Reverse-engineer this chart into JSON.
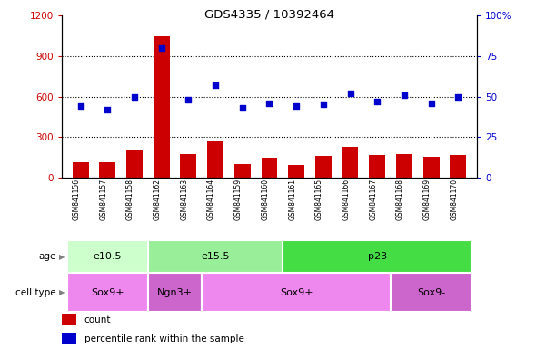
{
  "title": "GDS4335 / 10392464",
  "samples": [
    "GSM841156",
    "GSM841157",
    "GSM841158",
    "GSM841162",
    "GSM841163",
    "GSM841164",
    "GSM841159",
    "GSM841160",
    "GSM841161",
    "GSM841165",
    "GSM841166",
    "GSM841167",
    "GSM841168",
    "GSM841169",
    "GSM841170"
  ],
  "counts": [
    110,
    110,
    210,
    1050,
    175,
    270,
    100,
    145,
    95,
    160,
    230,
    165,
    175,
    155,
    165
  ],
  "percentiles": [
    44,
    42,
    50,
    80,
    48,
    57,
    43,
    46,
    44,
    45,
    52,
    47,
    51,
    46,
    50
  ],
  "age_groups": [
    {
      "label": "e10.5",
      "start": 0,
      "end": 3,
      "color": "#ccffcc"
    },
    {
      "label": "e15.5",
      "start": 3,
      "end": 8,
      "color": "#99ee99"
    },
    {
      "label": "p23",
      "start": 8,
      "end": 15,
      "color": "#44dd44"
    }
  ],
  "cell_groups": [
    {
      "label": "Sox9+",
      "start": 0,
      "end": 3,
      "color": "#ee88ee"
    },
    {
      "label": "Ngn3+",
      "start": 3,
      "end": 5,
      "color": "#cc66cc"
    },
    {
      "label": "Sox9+",
      "start": 5,
      "end": 12,
      "color": "#ee88ee"
    },
    {
      "label": "Sox9-",
      "start": 12,
      "end": 15,
      "color": "#cc66cc"
    }
  ],
  "bar_color": "#cc0000",
  "dot_color": "#0000cc",
  "left_ylim": [
    0,
    1200
  ],
  "right_ylim": [
    0,
    100
  ],
  "left_yticks": [
    0,
    300,
    600,
    900,
    1200
  ],
  "right_yticks": [
    0,
    25,
    50,
    75,
    100
  ],
  "right_yticklabels": [
    "0",
    "25",
    "50",
    "75",
    "100%"
  ],
  "grid_vals": [
    300,
    600,
    900
  ],
  "grid_color": "#000000",
  "bg_color": "#ffffff",
  "sample_bg_color": "#d0d0d0",
  "tick_label_color_left": "#cc0000",
  "tick_label_color_right": "#0000cc",
  "legend_count_label": "count",
  "legend_pct_label": "percentile rank within the sample"
}
